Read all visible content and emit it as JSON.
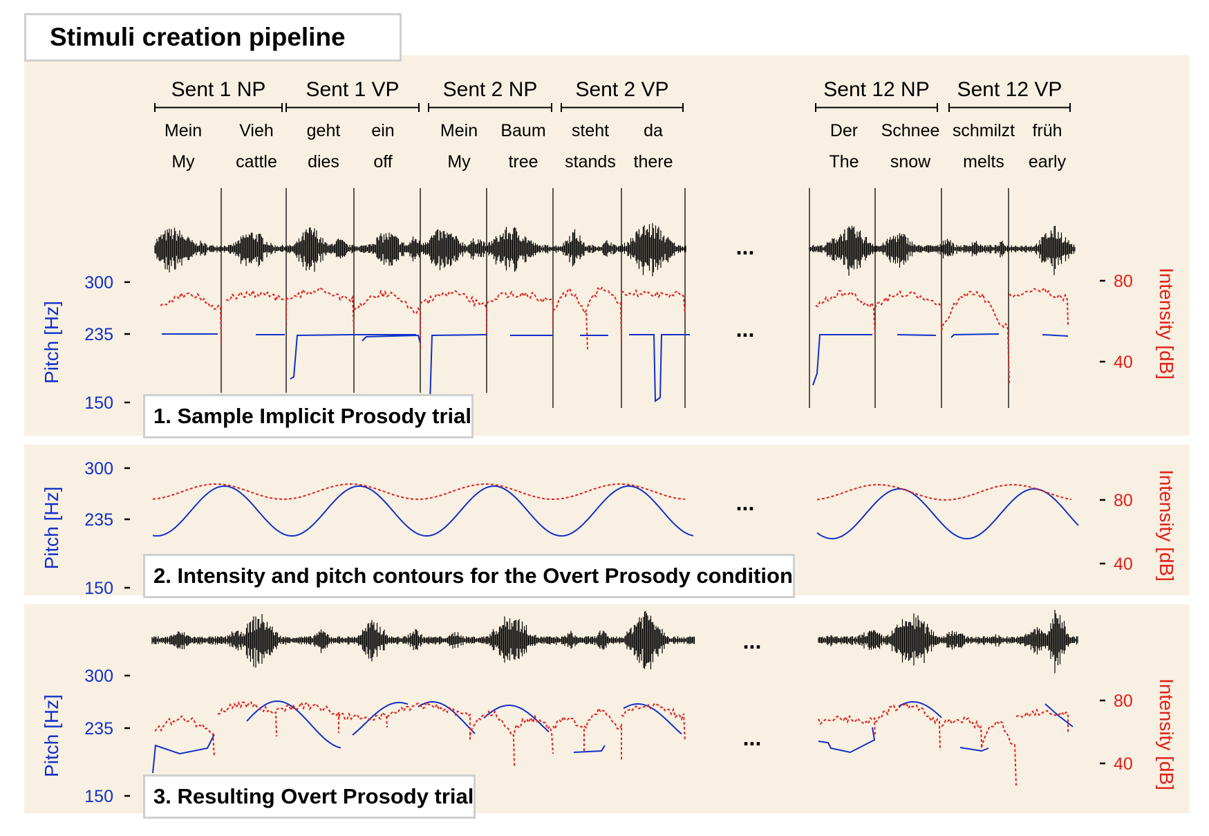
{
  "title": "Stimuli creation pipeline",
  "colors": {
    "panel_bg": "#f8f0e2",
    "pitch": "#1030c8",
    "intensity": "#e0201a",
    "waveform": "#000000",
    "label_border": "#cfcfcf"
  },
  "segments": [
    {
      "label": "Sent 1 NP",
      "words": [
        "Mein",
        "Vieh"
      ],
      "glosses": [
        "My",
        "cattle"
      ]
    },
    {
      "label": "Sent 1 VP",
      "words": [
        "geht",
        "ein"
      ],
      "glosses": [
        "dies",
        "off"
      ]
    },
    {
      "label": "Sent 2 NP",
      "words": [
        "Mein",
        "Baum"
      ],
      "glosses": [
        "My",
        "tree"
      ]
    },
    {
      "label": "Sent 2 VP",
      "words": [
        "steht",
        "da"
      ],
      "glosses": [
        "stands",
        "there"
      ]
    },
    {
      "label": "Sent 12 NP",
      "words": [
        "Der",
        "Schnee"
      ],
      "glosses": [
        "The",
        "snow"
      ]
    },
    {
      "label": "Sent 12 VP",
      "words": [
        "schmilzt",
        "früh"
      ],
      "glosses": [
        "melts",
        "early"
      ]
    }
  ],
  "ellipsis": "...",
  "axes": {
    "pitch_label": "Pitch [Hz]",
    "pitch_ticks": [
      "300",
      "235",
      "150"
    ],
    "intensity_label": "Intensity [dB]",
    "intensity_ticks": [
      "80",
      "40"
    ]
  },
  "panels": [
    {
      "label": "1. Sample Implicit Prosody trial"
    },
    {
      "label": "2. Intensity and pitch contours for the Overt Prosody condition"
    },
    {
      "label": "3. Resulting Overt Prosody trial"
    }
  ]
}
